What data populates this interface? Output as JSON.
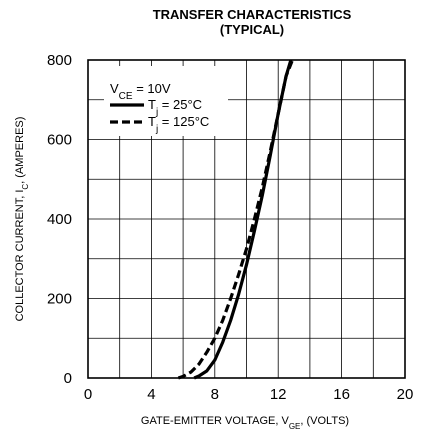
{
  "chart_data": {
    "type": "line",
    "title": "TRANSFER CHARACTERISTICS",
    "subtitle": "(TYPICAL)",
    "xlabel": {
      "main": "GATE-EMITTER VOLTAGE, V",
      "sub": "GE",
      "tail": ", (VOLTS)"
    },
    "ylabel": {
      "main": "COLLECTOR CURRENT, I",
      "sub": "C",
      "tail": ", (AMPERES)"
    },
    "xlim": [
      0,
      20
    ],
    "ylim": [
      0,
      800
    ],
    "x_ticks": [
      "0",
      "4",
      "8",
      "12",
      "16",
      "20"
    ],
    "y_ticks": [
      "0",
      "200",
      "400",
      "600",
      "800"
    ],
    "grid": true,
    "legend_position": "top-left",
    "condition": {
      "main": "V",
      "sub": "CE",
      "tail": " = 10V"
    },
    "series": [
      {
        "name": {
          "main": "T",
          "sub": "j",
          "tail": " = 25°C"
        },
        "style": "solid",
        "color": "#000000",
        "x": [
          6.7,
          7.0,
          7.5,
          8.0,
          8.5,
          9.0,
          9.5,
          10.0,
          10.5,
          11.0,
          11.5,
          12.0,
          12.5,
          12.8
        ],
        "y": [
          0,
          5,
          18,
          45,
          90,
          145,
          210,
          285,
          370,
          460,
          560,
          665,
          760,
          800
        ]
      },
      {
        "name": {
          "main": "T",
          "sub": "j",
          "tail": " = 125°C"
        },
        "style": "dashed",
        "color": "#000000",
        "x": [
          5.7,
          6.0,
          6.5,
          7.0,
          7.5,
          8.0,
          8.5,
          9.0,
          9.5,
          10.0,
          10.5,
          11.0,
          11.5,
          12.0,
          12.5,
          12.9
        ],
        "y": [
          0,
          4,
          15,
          35,
          65,
          100,
          145,
          200,
          260,
          325,
          400,
          480,
          570,
          665,
          760,
          800
        ]
      }
    ]
  }
}
